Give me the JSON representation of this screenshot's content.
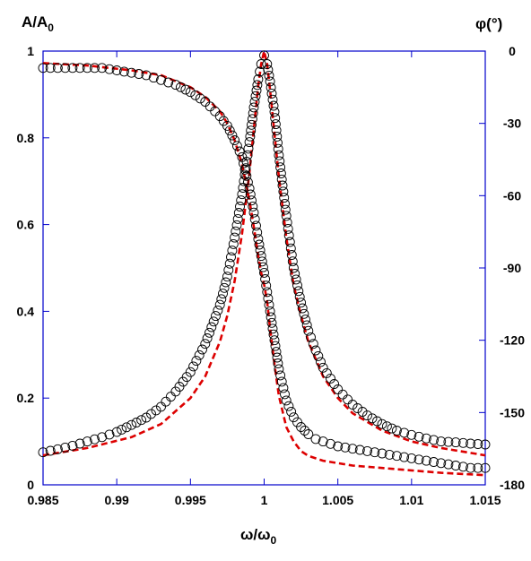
{
  "chart_data": {
    "type": "scatter",
    "title": "",
    "xlabel": {
      "main": "ω/ω",
      "sub": "0"
    },
    "ylabel_left": {
      "main": "A/A",
      "sub": "0"
    },
    "ylabel_right": "φ(°)",
    "xlim": [
      0.985,
      1.015
    ],
    "ylim_left": [
      0,
      1
    ],
    "ylim_right": [
      -180,
      0
    ],
    "x_ticks": [
      "0.985",
      "0.99",
      "0.995",
      "1",
      "1.005",
      "1.01",
      "1.015"
    ],
    "y_left_ticks": [
      "0",
      "0.2",
      "0.4",
      "0.6",
      "0.8",
      "1"
    ],
    "y_right_ticks": [
      "0",
      "-30",
      "-60",
      "-90",
      "-120",
      "-150",
      "-180"
    ],
    "grid": false,
    "legend": "none",
    "colors": {
      "axis": "#0000cc",
      "fit": "#dd0000",
      "markers": "#000000"
    },
    "series": [
      {
        "axis": "left",
        "style": "open-circle-markers",
        "x": [
          0.985,
          0.986,
          0.987,
          0.988,
          0.989,
          0.99,
          0.991,
          0.992,
          0.993,
          0.994,
          0.995,
          0.996,
          0.997,
          0.9975,
          0.998,
          0.9985,
          0.999,
          0.9993,
          0.9996,
          0.9998,
          1.0,
          1.0002,
          1.0004,
          1.0007,
          1.001,
          1.0015,
          1.002,
          1.0025,
          1.003,
          1.0035,
          1.004,
          1.005,
          1.006,
          1.007,
          1.008,
          1.009,
          1.01,
          1.011,
          1.012,
          1.013,
          1.014,
          1.015
        ],
        "y": [
          0.075,
          0.082,
          0.09,
          0.1,
          0.11,
          0.122,
          0.138,
          0.155,
          0.18,
          0.215,
          0.26,
          0.325,
          0.415,
          0.48,
          0.57,
          0.67,
          0.79,
          0.87,
          0.935,
          0.97,
          0.99,
          0.97,
          0.93,
          0.86,
          0.76,
          0.62,
          0.5,
          0.42,
          0.355,
          0.31,
          0.27,
          0.22,
          0.185,
          0.16,
          0.14,
          0.125,
          0.115,
          0.107,
          0.1,
          0.098,
          0.095,
          0.093
        ]
      },
      {
        "axis": "right",
        "style": "open-circle-markers",
        "x": [
          0.985,
          0.986,
          0.987,
          0.988,
          0.989,
          0.99,
          0.991,
          0.992,
          0.993,
          0.994,
          0.995,
          0.996,
          0.997,
          0.9975,
          0.998,
          0.9985,
          0.999,
          0.9993,
          0.9996,
          0.9998,
          1.0,
          1.0002,
          1.0004,
          1.0007,
          1.001,
          1.0015,
          1.002,
          1.0025,
          1.003,
          1.0035,
          1.004,
          1.005,
          1.006,
          1.007,
          1.008,
          1.009,
          1.01,
          1.011,
          1.012,
          1.013,
          1.014,
          1.015
        ],
        "y": [
          -7,
          -7,
          -7,
          -7,
          -7,
          -8,
          -9,
          -10,
          -12,
          -14,
          -17,
          -21,
          -27,
          -31,
          -37,
          -44,
          -57,
          -67,
          -78,
          -85,
          -92,
          -100,
          -108,
          -120,
          -132,
          -145,
          -152,
          -156,
          -159,
          -161,
          -162,
          -164,
          -165,
          -166,
          -167,
          -168,
          -169,
          -170,
          -171,
          -172,
          -173,
          -173
        ]
      },
      {
        "axis": "left",
        "style": "dashed-fit-line",
        "x": [
          0.985,
          0.988,
          0.991,
          0.993,
          0.995,
          0.996,
          0.997,
          0.9975,
          0.998,
          0.9985,
          0.999,
          0.9993,
          0.9996,
          0.9998,
          1.0,
          1.0002,
          1.0004,
          1.0007,
          1.001,
          1.0015,
          1.002,
          1.0025,
          1.003,
          1.004,
          1.005,
          1.006,
          1.008,
          1.01,
          1.012,
          1.015
        ],
        "y": [
          0.068,
          0.085,
          0.11,
          0.14,
          0.2,
          0.25,
          0.33,
          0.39,
          0.47,
          0.58,
          0.72,
          0.82,
          0.92,
          0.97,
          1.0,
          0.97,
          0.91,
          0.81,
          0.71,
          0.57,
          0.46,
          0.39,
          0.33,
          0.25,
          0.2,
          0.165,
          0.125,
          0.1,
          0.085,
          0.068
        ]
      },
      {
        "axis": "right",
        "style": "dashed-fit-line",
        "x": [
          0.985,
          0.988,
          0.991,
          0.993,
          0.995,
          0.996,
          0.997,
          0.9975,
          0.998,
          0.9985,
          0.999,
          0.9993,
          0.9996,
          0.9998,
          1.0,
          1.0002,
          1.0004,
          1.0007,
          1.001,
          1.0015,
          1.002,
          1.0025,
          1.003,
          1.004,
          1.005,
          1.006,
          1.008,
          1.01,
          1.012,
          1.015
        ],
        "y": [
          -5,
          -6,
          -8,
          -10,
          -15,
          -19,
          -25,
          -30,
          -37,
          -47,
          -62,
          -73,
          -85,
          -92,
          -97,
          -104,
          -115,
          -130,
          -143,
          -156,
          -162,
          -166,
          -168,
          -170,
          -171,
          -172,
          -173,
          -174,
          -175,
          -176
        ]
      }
    ]
  }
}
